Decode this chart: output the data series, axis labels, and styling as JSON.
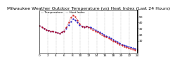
{
  "title": "Milwaukee Weather Outdoor Temperature (vs) Heat Index (Last 24 Hours)",
  "temp_label": "Temperature",
  "heat_label": "Heat Index",
  "temp": [
    35,
    32,
    30,
    28,
    27,
    26,
    25,
    24,
    23,
    22,
    24,
    26,
    30,
    36,
    42,
    46,
    44,
    40,
    36,
    34,
    33,
    34,
    33,
    32,
    30,
    28,
    26,
    24,
    22,
    20,
    18,
    16,
    14,
    12,
    10,
    8,
    6,
    4,
    2,
    1,
    0,
    -1,
    -2,
    -3,
    -4
  ],
  "heat": [
    35,
    32,
    30,
    28,
    27,
    26,
    25,
    24,
    23,
    22,
    24,
    26,
    32,
    40,
    48,
    52,
    50,
    44,
    38,
    34,
    33,
    34,
    32,
    30,
    28,
    26,
    24,
    22,
    20,
    18,
    16,
    14,
    12,
    10,
    8,
    6,
    4,
    2,
    0,
    -1,
    -2,
    -3,
    -4,
    -5,
    -6
  ],
  "ylim": [
    -10,
    60
  ],
  "ytick_vals": [
    10,
    20,
    30,
    40,
    50
  ],
  "ytick_labels": [
    "10",
    "20",
    "30",
    "40",
    "50"
  ],
  "n_xticks": 13,
  "temp_color": "#0000bb",
  "heat_color": "#cc0000",
  "bg_color": "#ffffff",
  "grid_color": "#888888",
  "title_fontsize": 4.5,
  "tick_fontsize": 3.2,
  "legend_fontsize": 3.0
}
